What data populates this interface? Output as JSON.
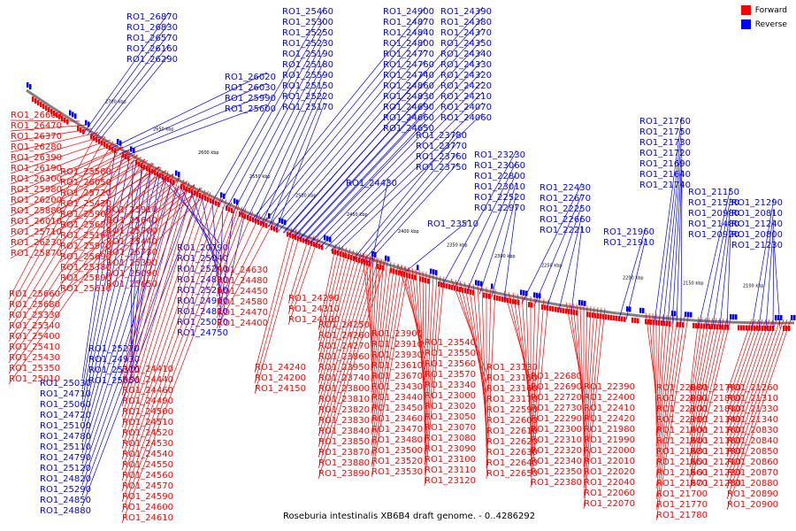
{
  "caption": "Roseburia intestinalis XB6B4 draft genome. - 0..4286292",
  "legend": [
    {
      "label": "Forward",
      "color": "#ff0000"
    },
    {
      "label": "Reverse",
      "color": "#0000ff"
    }
  ],
  "colors": {
    "forward": "#ff0000",
    "reverse": "#0000ff",
    "backbone": "#808080"
  },
  "ticks": [
    "2700 kbp",
    "2650 kbp",
    "2600 kbp",
    "2550 kbp",
    "2500 kbp",
    "2450 kbp",
    "2400 kbp",
    "2350 kbp",
    "2300 kbp",
    "2250 kbp",
    "2200 kbp",
    "2150 kbp",
    "2100 kbp"
  ],
  "reverse_labels": [
    "RO1_26870",
    "RO1_26830",
    "RO1_26570",
    "RO1_26160",
    "RO1_26290",
    "RO1_26020",
    "RO1_26030",
    "RO1_25990",
    "RO1_25600",
    "RO1_25460",
    "RO1_25300",
    "RO1_25250",
    "RO1_25230",
    "RO1_25190",
    "RO1_25180",
    "RO1_25590",
    "RO1_25150",
    "RO1_25220",
    "RO1_25170",
    "RO1_24900",
    "RO1_24870",
    "RO1_24840",
    "RO1_24800",
    "RO1_24770",
    "RO1_24760",
    "RO1_24740",
    "RO1_24860",
    "RO1_24830",
    "RO1_24690",
    "RO1_24660",
    "RO1_24650",
    "RO1_24390",
    "RO1_24380",
    "RO1_24370",
    "RO1_24350",
    "RO1_24340",
    "RO1_24330",
    "RO1_24320",
    "RO1_24220",
    "RO1_24210",
    "RO1_24070",
    "RO1_24060",
    "RO1_23780",
    "RO1_23770",
    "RO1_23760",
    "RO1_23750",
    "RO1_24430",
    "RO1_23510",
    "RO1_23230",
    "RO1_23060",
    "RO1_22800",
    "RO1_23010",
    "RO1_22520",
    "RO1_22970",
    "RO1_22430",
    "RO1_22670",
    "RO1_22250",
    "RO1_22660",
    "RO1_22210",
    "RO1_21960",
    "RO1_21910",
    "RO1_21760",
    "RO1_21750",
    "RO1_21730",
    "RO1_21720",
    "RO1_21690",
    "RO1_21640",
    "RO1_21740",
    "RO1_21150",
    "RO1_21530",
    "RO1_20980",
    "RO1_21480",
    "RO1_20920",
    "RO1_21290",
    "RO1_20810",
    "RO1_21240",
    "RO1_20800",
    "RO1_21230",
    "RO1_20790",
    "RO1_25040",
    "RO1_25240",
    "RO1_24890",
    "RO1_25260",
    "RO1_24960",
    "RO1_24810",
    "RO1_25070",
    "RO1_24750",
    "RO1_25270",
    "RO1_24930",
    "RO1_25310",
    "RO1_25050",
    "RO1_25030",
    "RO1_24710",
    "RO1_25060",
    "RO1_24720",
    "RO1_25100",
    "RO1_24780",
    "RO1_25110",
    "RO1_24790",
    "RO1_25120",
    "RO1_24820",
    "RO1_25290",
    "RO1_24850",
    "RO1_24880",
    "RO1_24910",
    "RO1_24920",
    "RO1_24940",
    "RO1_24950",
    "RO1_24980",
    "RO1_24990",
    "RO1_25000"
  ],
  "forward_labels": [
    "RO1_26600",
    "RO1_26470",
    "RO1_26370",
    "RO1_26280",
    "RO1_26390",
    "RO1_26190",
    "RO1_26300",
    "RO1_25980",
    "RO1_26200",
    "RO1_25880",
    "RO1_26010",
    "RO1_25710",
    "RO1_26230",
    "RO1_25870",
    "RO1_25580",
    "RO1_26050",
    "RO1_25720",
    "RO1_25420",
    "RO1_25900",
    "RO1_25620",
    "RO1_25160",
    "RO1_25970",
    "RO1_25690",
    "RO1_25380",
    "RO1_25890",
    "RO1_25610",
    "RO1_25910",
    "RO1_25640",
    "RO1_25700",
    "RO1_25440",
    "RO1_25730",
    "RO1_25390",
    "RO1_25090",
    "RO1_25650",
    "RO1_25660",
    "RO1_25680",
    "RO1_25330",
    "RO1_25340",
    "RO1_25400",
    "RO1_25410",
    "RO1_25430",
    "RO1_25350",
    "RO1_25010",
    "RO1_24630",
    "RO1_24480",
    "RO1_24450",
    "RO1_24580",
    "RO1_24470",
    "RO1_24400",
    "RO1_24410",
    "RO1_24440",
    "RO1_24460",
    "RO1_24490",
    "RO1_24500",
    "RO1_24510",
    "RO1_24520",
    "RO1_24530",
    "RO1_24540",
    "RO1_24550",
    "RO1_24560",
    "RO1_24570",
    "RO1_24590",
    "RO1_24600",
    "RO1_24610",
    "RO1_24290",
    "RO1_24310",
    "RO1_24100",
    "RO1_24240",
    "RO1_24200",
    "RO1_24150",
    "RO1_24250",
    "RO1_24260",
    "RO1_24270",
    "RO1_23860",
    "RO1_23950",
    "RO1_23740",
    "RO1_23800",
    "RO1_23810",
    "RO1_23820",
    "RO1_23830",
    "RO1_23840",
    "RO1_23850",
    "RO1_23870",
    "RO1_23880",
    "RO1_23890",
    "RO1_23900",
    "RO1_23910",
    "RO1_23930",
    "RO1_23610",
    "RO1_23670",
    "RO1_23430",
    "RO1_23440",
    "RO1_23450",
    "RO1_23460",
    "RO1_23470",
    "RO1_23480",
    "RO1_23500",
    "RO1_23520",
    "RO1_23530",
    "RO1_23540",
    "RO1_23550",
    "RO1_23560",
    "RO1_23570",
    "RO1_23340",
    "RO1_23000",
    "RO1_23020",
    "RO1_23050",
    "RO1_23070",
    "RO1_23080",
    "RO1_23090",
    "RO1_23100",
    "RO1_23110",
    "RO1_23120",
    "RO1_23130",
    "RO1_23150",
    "RO1_23160",
    "RO1_23170",
    "RO1_22590",
    "RO1_22600",
    "RO1_22610",
    "RO1_22620",
    "RO1_22630",
    "RO1_22640",
    "RO1_22650",
    "RO1_22680",
    "RO1_22690",
    "RO1_22720",
    "RO1_22730",
    "RO1_22290",
    "RO1_22300",
    "RO1_22310",
    "RO1_22320",
    "RO1_22340",
    "RO1_22350",
    "RO1_22380",
    "RO1_22390",
    "RO1_22400",
    "RO1_22410",
    "RO1_22420",
    "RO1_21980",
    "RO1_21990",
    "RO1_22000",
    "RO1_22010",
    "RO1_22020",
    "RO1_22040",
    "RO1_22060",
    "RO1_22070",
    "RO1_22080",
    "RO1_22090",
    "RO1_22100",
    "RO1_22110",
    "RO1_21600",
    "RO1_21610",
    "RO1_21630",
    "RO1_21650",
    "RO1_21660",
    "RO1_21670",
    "RO1_21700",
    "RO1_21770",
    "RO1_21780",
    "RO1_21790",
    "RO1_21800",
    "RO1_21810",
    "RO1_21140",
    "RO1_21160",
    "RO1_21180",
    "RO1_21190",
    "RO1_21210",
    "RO1_21220",
    "RO1_21250",
    "RO1_21260",
    "RO1_21310",
    "RO1_21330",
    "RO1_21340",
    "RO1_20830",
    "RO1_20840",
    "RO1_20850",
    "RO1_20860",
    "RO1_20870",
    "RO1_20880",
    "RO1_20890",
    "RO1_20900",
    "RO1_20930",
    "RO1_20950",
    "RO1_20960",
    "RO1_20970"
  ]
}
